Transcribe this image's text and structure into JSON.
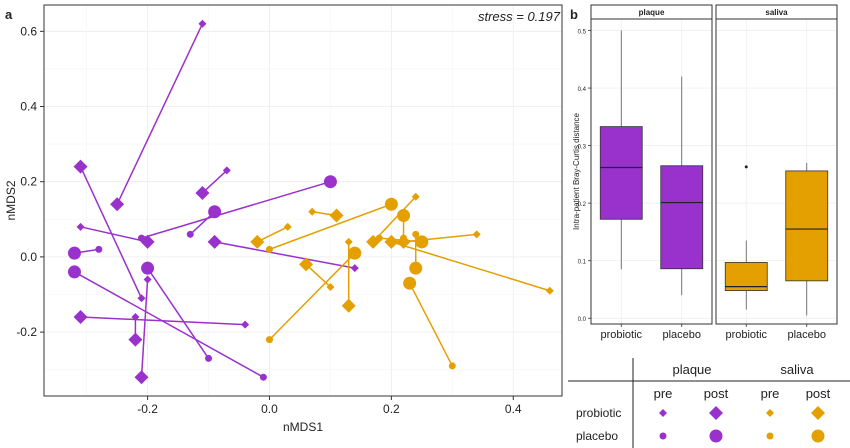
{
  "panel_a": {
    "label": "a",
    "stress_text": "stress = 0.197",
    "xlabel": "nMDS1",
    "ylabel": "nMDS2",
    "xlim": [
      -0.37,
      0.48
    ],
    "ylim": [
      -0.37,
      0.67
    ],
    "xticks": [
      "-0.2",
      "0.0",
      "0.2",
      "0.4"
    ],
    "xtick_values": [
      -0.2,
      0,
      0.2,
      0.4
    ],
    "yticks": [
      "-0.2",
      "0.0",
      "0.2",
      "0.4",
      "0.6"
    ],
    "ytick_values": [
      -0.2,
      0,
      0.2,
      0.4,
      0.6
    ]
  },
  "panel_b": {
    "label": "b",
    "ylabel": "Intra-patient Bray-Curtis distance",
    "ylim": [
      -0.01,
      0.52
    ],
    "yticks": [
      "0.0",
      "0.1",
      "0.2",
      "0.3",
      "0.4",
      "0.5"
    ],
    "ytick_values": [
      0,
      0.1,
      0.2,
      0.3,
      0.4,
      0.5
    ],
    "facets": [
      "plaque",
      "saliva"
    ],
    "xticks": [
      "probiotic",
      "placebo"
    ]
  },
  "legend": {
    "groups": [
      "plaque",
      "saliva"
    ],
    "times": [
      "pre",
      "post",
      "pre",
      "post"
    ],
    "rows": [
      "probiotic",
      "placebo"
    ]
  },
  "colors": {
    "plaque": "#9932CC",
    "saliva": "#E3A000"
  },
  "chart_data": [
    {
      "type": "scatter",
      "title": "",
      "xlabel": "nMDS1",
      "ylabel": "nMDS2",
      "note": "Paired samples per patient connected by lines (pre to post); point size = pre (small) / post (large); shape = probiotic (diamond) / placebo (circle)",
      "series": [
        {
          "name": "plaque",
          "pairs": [
            {
              "group": "probiotic",
              "pre": [
                -0.11,
                0.62
              ],
              "post": [
                -0.25,
                0.14
              ]
            },
            {
              "group": "probiotic",
              "pre": [
                -0.31,
                0.08
              ],
              "post": [
                -0.2,
                0.04
              ]
            },
            {
              "group": "probiotic",
              "pre": [
                -0.04,
                -0.18
              ],
              "post": [
                -0.31,
                -0.16
              ]
            },
            {
              "group": "probiotic",
              "pre": [
                -0.22,
                -0.16
              ],
              "post": [
                -0.22,
                -0.22
              ]
            },
            {
              "group": "probiotic",
              "pre": [
                -0.2,
                -0.06
              ],
              "post": [
                -0.21,
                -0.32
              ]
            },
            {
              "group": "probiotic",
              "pre": [
                0.14,
                -0.03
              ],
              "post": [
                -0.09,
                0.04
              ]
            },
            {
              "group": "probiotic",
              "pre": [
                -0.07,
                0.23
              ],
              "post": [
                -0.11,
                0.17
              ]
            },
            {
              "group": "probiotic",
              "pre": [
                -0.21,
                -0.11
              ],
              "post": [
                -0.31,
                0.24
              ]
            },
            {
              "group": "placebo",
              "pre": [
                -0.21,
                0.05
              ],
              "post": [
                0.1,
                0.2
              ]
            },
            {
              "group": "placebo",
              "pre": [
                -0.13,
                0.06
              ],
              "post": [
                -0.09,
                0.12
              ]
            },
            {
              "group": "placebo",
              "pre": [
                -0.28,
                0.02
              ],
              "post": [
                -0.32,
                0.01
              ]
            },
            {
              "group": "placebo",
              "pre": [
                -0.01,
                -0.32
              ],
              "post": [
                -0.32,
                -0.04
              ]
            },
            {
              "group": "placebo",
              "pre": [
                -0.1,
                -0.27
              ],
              "post": [
                -0.2,
                -0.03
              ]
            }
          ]
        },
        {
          "name": "saliva",
          "pairs": [
            {
              "group": "probiotic",
              "pre": [
                0.07,
                0.12
              ],
              "post": [
                0.11,
                0.11
              ]
            },
            {
              "group": "probiotic",
              "pre": [
                0.03,
                0.08
              ],
              "post": [
                -0.02,
                0.04
              ]
            },
            {
              "group": "probiotic",
              "pre": [
                0.13,
                0.04
              ],
              "post": [
                0.13,
                -0.13
              ]
            },
            {
              "group": "probiotic",
              "pre": [
                0.1,
                -0.08
              ],
              "post": [
                0.06,
                -0.02
              ]
            },
            {
              "group": "probiotic",
              "pre": [
                0.34,
                0.06
              ],
              "post": [
                0.22,
                0.04
              ]
            },
            {
              "group": "probiotic",
              "pre": [
                0.46,
                -0.09
              ],
              "post": [
                0.2,
                0.04
              ]
            },
            {
              "group": "probiotic",
              "pre": [
                0.24,
                0.16
              ],
              "post": [
                0.17,
                0.04
              ]
            },
            {
              "group": "placebo",
              "pre": [
                0.0,
                0.02
              ],
              "post": [
                0.2,
                0.14
              ]
            },
            {
              "group": "placebo",
              "pre": [
                0.0,
                -0.22
              ],
              "post": [
                0.14,
                0.01
              ]
            },
            {
              "group": "placebo",
              "pre": [
                0.18,
                0.05
              ],
              "post": [
                0.25,
                0.04
              ]
            },
            {
              "group": "placebo",
              "pre": [
                0.3,
                -0.29
              ],
              "post": [
                0.23,
                -0.07
              ]
            },
            {
              "group": "placebo",
              "pre": [
                0.22,
                0.05
              ],
              "post": [
                0.22,
                0.11
              ]
            },
            {
              "group": "placebo",
              "pre": [
                0.24,
                0.06
              ],
              "post": [
                0.24,
                -0.03
              ]
            }
          ]
        }
      ]
    },
    {
      "type": "box",
      "title": "",
      "ylabel": "Intra-patient Bray-Curtis distance",
      "series": [
        {
          "name": "plaque",
          "category": "probiotic",
          "min": 0.085,
          "q1": 0.172,
          "median": 0.262,
          "q3": 0.333,
          "max": 0.5,
          "outliers": []
        },
        {
          "name": "plaque",
          "category": "placebo",
          "min": 0.04,
          "q1": 0.086,
          "median": 0.201,
          "q3": 0.265,
          "max": 0.42,
          "outliers": []
        },
        {
          "name": "saliva",
          "category": "probiotic",
          "min": 0.015,
          "q1": 0.048,
          "median": 0.055,
          "q3": 0.097,
          "max": 0.135,
          "outliers": [
            0.263
          ]
        },
        {
          "name": "saliva",
          "category": "placebo",
          "min": 0.005,
          "q1": 0.065,
          "median": 0.155,
          "q3": 0.256,
          "max": 0.27,
          "outliers": []
        }
      ]
    }
  ]
}
